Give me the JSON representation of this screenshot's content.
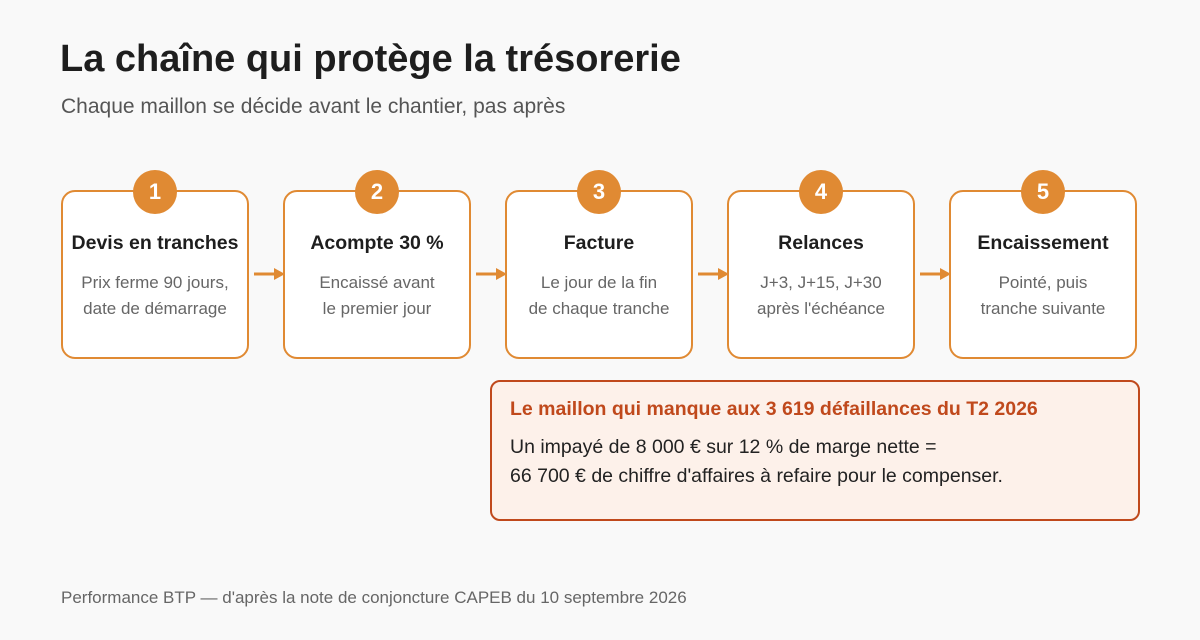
{
  "header": {
    "title": "La chaîne qui protège la trésorerie",
    "subtitle": "Chaque maillon se décide avant le chantier, pas après"
  },
  "colors": {
    "accent": "#e08a33",
    "alert": "#c0491c",
    "alert_bg": "#fdf1ea",
    "background": "#f9f9f9"
  },
  "steps": [
    {
      "number": "1",
      "title": "Devis en tranches",
      "desc": [
        "Prix ferme 90 jours,",
        "date de démarrage"
      ]
    },
    {
      "number": "2",
      "title": "Acompte 30 %",
      "desc": [
        "Encaissé avant",
        "le premier jour"
      ]
    },
    {
      "number": "3",
      "title": "Facture",
      "desc": [
        "Le jour de la fin",
        "de chaque tranche"
      ]
    },
    {
      "number": "4",
      "title": "Relances",
      "desc": [
        "J+3, J+15, J+30",
        "après l'échéance"
      ]
    },
    {
      "number": "5",
      "title": "Encaissement",
      "desc": [
        "Pointé, puis",
        "tranche suivante"
      ]
    }
  ],
  "callout": {
    "title": "Le maillon qui manque aux 3 619 défaillances du T2 2026",
    "lines": [
      "Un impayé de 8 000 € sur 12 % de marge nette =",
      "66 700 € de chiffre d'affaires à refaire pour le compenser."
    ]
  },
  "footer": {
    "source": "Performance BTP — d'après la note de conjoncture CAPEB du 10 septembre 2026"
  }
}
